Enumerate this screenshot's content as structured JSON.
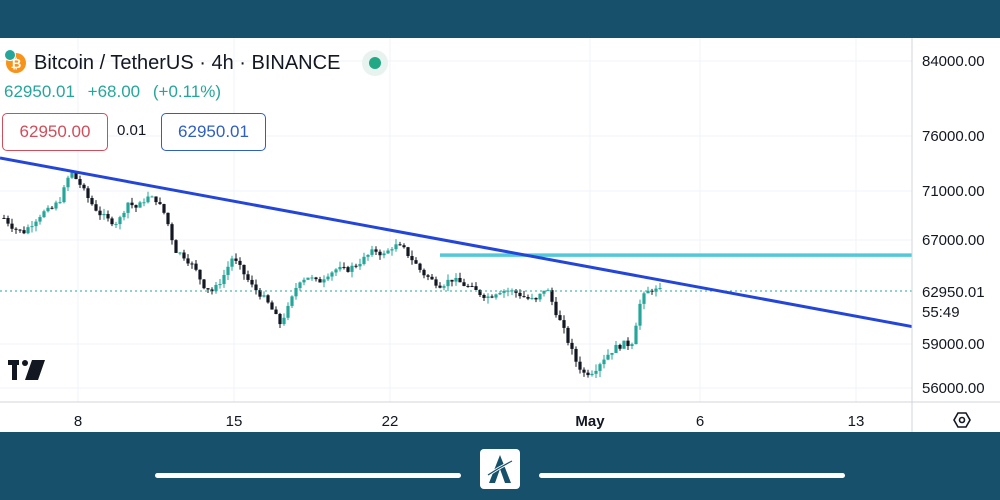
{
  "header": {
    "symbol_title": "Bitcoin / TetherUS · 4h · BINANCE",
    "last_price": "62950.01",
    "change": "+68.00",
    "change_pct": "(+0.11%)",
    "sell_price": "62950.00",
    "spread": "0.01",
    "buy_price": "62950.01",
    "icons": [
      "bitcoin-icon",
      "market-status-dot-icon"
    ]
  },
  "price_scale": {
    "labels": [
      "84000.00",
      "76000.00",
      "71000.00",
      "67000.00",
      "59000.00",
      "56000.00"
    ],
    "current_price_label": "62950.01",
    "countdown_label": "55:49"
  },
  "time_scale": {
    "labels": [
      "8",
      "15",
      "22",
      "May",
      "6",
      "13"
    ]
  },
  "branding": {
    "watermark_icon": "tradingview-logo-icon",
    "settings_icon": "settings-hexagon-icon",
    "footer_logo_icon": "brand-a-logo-icon"
  },
  "colors": {
    "up": "#26a69a",
    "down": "#131722",
    "trendline": "#2446d8",
    "resistance": "#52c8d8",
    "background_frame": "#17506b"
  },
  "chart_data": {
    "type": "candlestick",
    "timeframe": "4h",
    "price_levels_drawn": {
      "resistance": 65800,
      "current": 62950.01
    },
    "trendline": {
      "start_price": 74000,
      "end_price": 60300
    },
    "close_path": [
      68800,
      68000,
      67600,
      68400,
      69200,
      69500,
      70400,
      72800,
      71600,
      70200,
      69200,
      68600,
      68400,
      70100,
      69600,
      70500,
      70300,
      69000,
      66200,
      65700,
      64800,
      63400,
      62900,
      64000,
      65600,
      64600,
      63400,
      62700,
      61800,
      60500,
      61800,
      63800,
      64100,
      63600,
      64300,
      64700,
      64600,
      65000,
      65600,
      66200,
      65800,
      66600,
      66300,
      65400,
      64400,
      63800,
      63400,
      63900,
      63600,
      63200,
      62800,
      62500,
      63000,
      63000,
      62800,
      62400,
      62200,
      63300,
      61500,
      59800,
      58000,
      57000,
      57200,
      58000,
      58600,
      59000,
      59000,
      62300,
      63100,
      62950
    ]
  }
}
